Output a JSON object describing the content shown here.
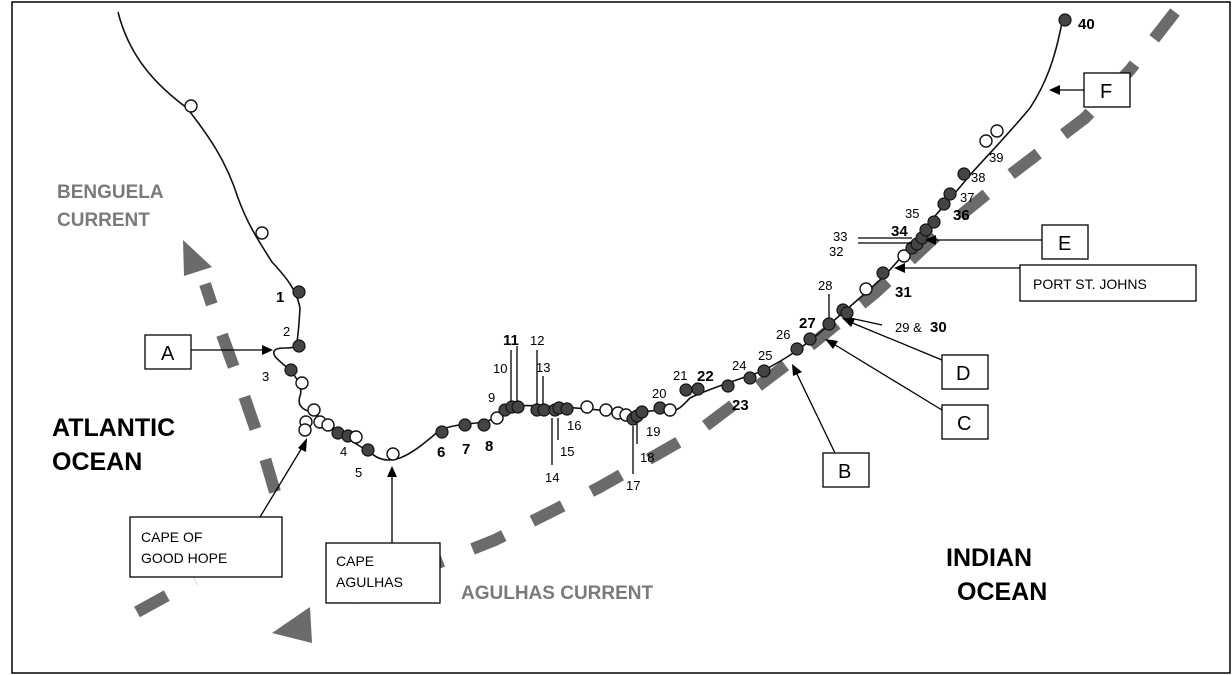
{
  "oceans": {
    "atlantic": [
      "ATLANTIC",
      "OCEAN"
    ],
    "indian": [
      "INDIAN",
      "OCEAN"
    ]
  },
  "currents": {
    "benguela": [
      "BENGUELA",
      "CURRENT"
    ],
    "agulhas": "AGULHAS CURRENT"
  },
  "places": {
    "cape_of_good_hope": [
      "CAPE OF",
      "GOOD HOPE"
    ],
    "cape_agulhas": [
      "CAPE",
      "AGULHAS"
    ],
    "port_st_johns": "PORT ST. JOHNS"
  },
  "markers": {
    "A": "A",
    "B": "B",
    "C": "C",
    "D": "D",
    "E": "E",
    "F": "F"
  },
  "sites": {
    "s1": "1",
    "s2": "2",
    "s3": "3",
    "s4": "4",
    "s5": "5",
    "s6": "6",
    "s7": "7",
    "s8": "8",
    "s9": "9",
    "s10": "10",
    "s11": "11",
    "s12": "12",
    "s13": "13",
    "s14": "14",
    "s15": "15",
    "s16": "16",
    "s17": "17",
    "s18": "18",
    "s19": "19",
    "s20": "20",
    "s21": "21",
    "s22": "22",
    "s23": "23",
    "s24": "24",
    "s25": "25",
    "s26": "26",
    "s27": "27",
    "s28": "28",
    "s29_30_a": "29 &",
    "s29_30_b": "30",
    "s31": "31",
    "s32": "32",
    "s33": "33",
    "s34": "34",
    "s35": "35",
    "s36": "36",
    "s37": "37",
    "s38": "38",
    "s39": "39",
    "s40": "40"
  },
  "colors": {
    "filled_site": "#444444",
    "open_site": "#ffffff",
    "current_arrow": "#6b6b6b"
  }
}
